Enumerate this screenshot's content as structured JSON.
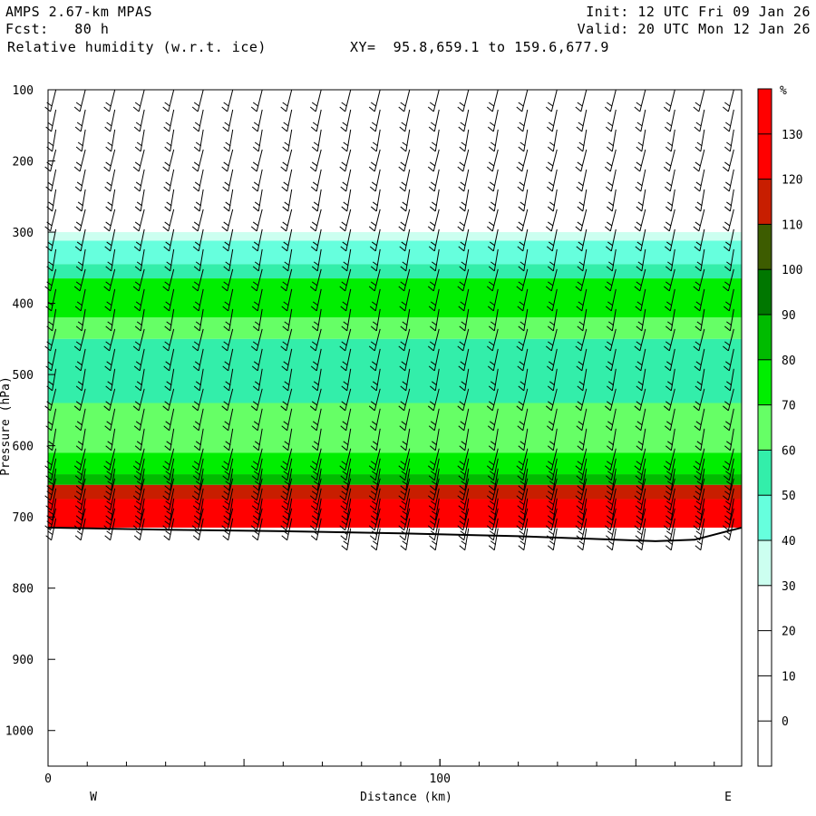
{
  "header": {
    "model": "AMPS 2.67-km MPAS",
    "forecast": "Fcst:   80 h",
    "field": "Relative humidity (w.r.t. ice)",
    "xy": "XY=  95.8,659.1 to 159.6,677.9",
    "init": "Init: 12 UTC Fri 09 Jan 26",
    "valid": "Valid: 20 UTC Mon 12 Jan 26"
  },
  "chart_data": {
    "type": "heatmap",
    "title": "Relative humidity (w.r.t. ice)",
    "xlabel": "Distance (km)",
    "ylabel": "Pressure (hPa)",
    "xlim": [
      0,
      177
    ],
    "ylim": [
      1050,
      100
    ],
    "x_ticks": [
      0,
      100
    ],
    "y_ticks": [
      100,
      200,
      300,
      400,
      500,
      600,
      700,
      800,
      900,
      1000
    ],
    "direction_left": "W",
    "direction_right": "E",
    "colorbar": {
      "unit": "%",
      "levels": [
        0,
        10,
        20,
        30,
        40,
        50,
        60,
        70,
        80,
        90,
        100,
        110,
        120,
        130
      ],
      "colors": [
        "#ffffff",
        "#ffffff",
        "#ffffff",
        "#ffffff",
        "#ccfff0",
        "#66ffdd",
        "#33eeaa",
        "#66ff66",
        "#00ee00",
        "#00bb00",
        "#007700",
        "#3d5c00",
        "#c81e00",
        "#ff0000",
        "#ff0000"
      ]
    },
    "layers": [
      {
        "name": "30-40",
        "p_top": 300,
        "p_bottom": 312
      },
      {
        "name": "40-50",
        "p_top": 312,
        "p_bottom": 345
      },
      {
        "name": "50-60",
        "p_top": 345,
        "p_bottom": 365
      },
      {
        "name": "70-80",
        "p_top": 365,
        "p_bottom": 420
      },
      {
        "name": "60-70",
        "p_top": 420,
        "p_bottom": 450
      },
      {
        "name": "50-60",
        "p_top": 450,
        "p_bottom": 540
      },
      {
        "name": "60-70",
        "p_top": 540,
        "p_bottom": 610
      },
      {
        "name": "70-80",
        "p_top": 610,
        "p_bottom": 640
      },
      {
        "name": "80-90",
        "p_top": 640,
        "p_bottom": 655
      },
      {
        "name": "110-120",
        "p_top": 655,
        "p_bottom": 675
      },
      {
        "name": "120-130",
        "p_top": 675,
        "p_bottom": 715
      }
    ],
    "terrain_surface": [
      {
        "x": 0,
        "p": 715
      },
      {
        "x": 30,
        "p": 718
      },
      {
        "x": 60,
        "p": 720
      },
      {
        "x": 90,
        "p": 723
      },
      {
        "x": 120,
        "p": 727
      },
      {
        "x": 140,
        "p": 731
      },
      {
        "x": 155,
        "p": 734
      },
      {
        "x": 165,
        "p": 732
      },
      {
        "x": 172,
        "p": 722
      },
      {
        "x": 177,
        "p": 715
      }
    ],
    "wind_barb_columns": 24
  }
}
